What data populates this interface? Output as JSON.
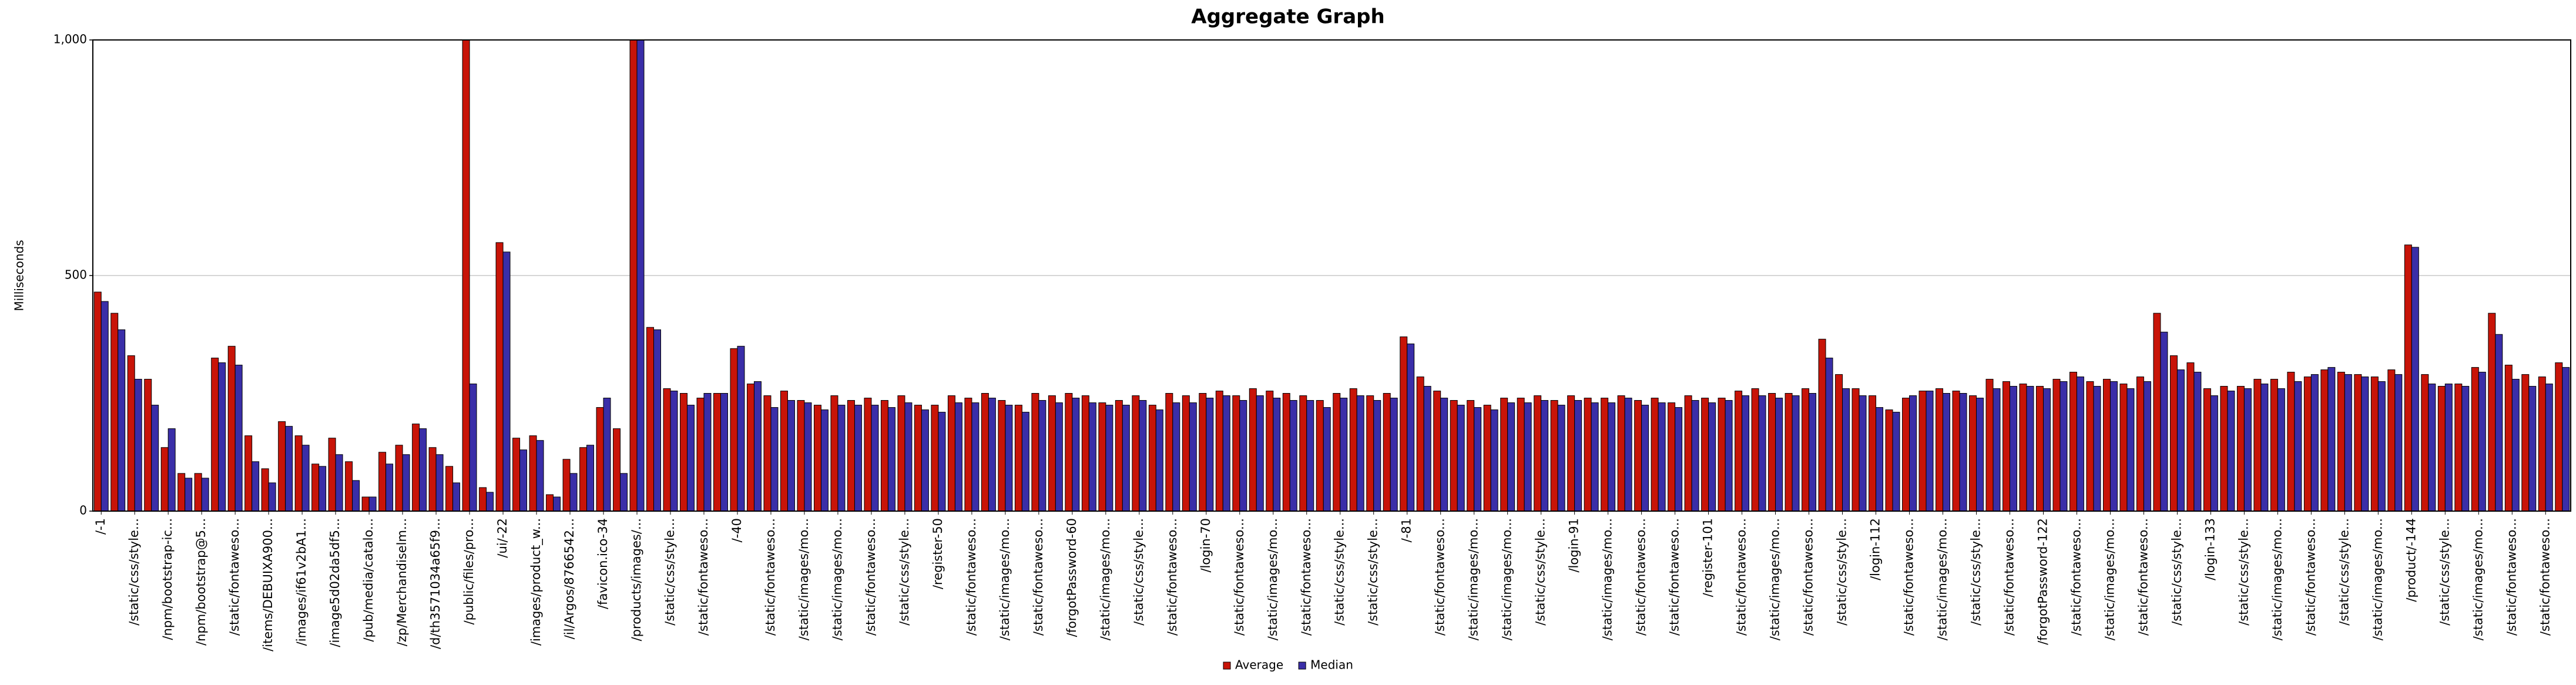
{
  "chart_data": {
    "type": "bar",
    "title": "Aggregate Graph",
    "y_label": "Milliseconds",
    "ylim": [
      0,
      1000
    ],
    "yticks": [
      0,
      500,
      {
        "value": 1000,
        "label": "1,000"
      }
    ],
    "grid": true,
    "legend": "bottom",
    "categories": [
      "/-1",
      null,
      "/static/css/style...",
      null,
      "/npm/bootstrap-ic...",
      null,
      "/npm/bootstrap@5...",
      null,
      "/static/fontaweso...",
      null,
      "/items/DEBUIXA900...",
      null,
      "/images/if61v2bA1...",
      null,
      "/image5d02da5df5...",
      null,
      "/pub/media/catalo...",
      null,
      "/zp/Merchandiselm...",
      null,
      "/d/th3571034a65f9...",
      null,
      "/public/files/pro...",
      null,
      "/ui/-22",
      null,
      "/images/product_w...",
      null,
      "/il/Argos/8766542...",
      null,
      "/favicon.ico-34",
      null,
      "/products/images/...",
      null,
      "/static/css/style...",
      null,
      "/static/fontaweso...",
      null,
      "/-40",
      null,
      "/static/fontaweso...",
      null,
      "/static/images/mo...",
      null,
      "/static/images/mo...",
      null,
      "/static/fontaweso...",
      null,
      "/static/css/style...",
      null,
      "/register-50",
      null,
      "/static/fontaweso...",
      null,
      "/static/images/mo...",
      null,
      "/static/fontaweso...",
      null,
      "/forgotPassword-60",
      null,
      "/static/images/mo...",
      null,
      "/static/css/style...",
      null,
      "/static/fontaweso...",
      null,
      "/login-70",
      null,
      "/static/fontaweso...",
      null,
      "/static/images/mo...",
      null,
      "/static/fontaweso...",
      null,
      "/static/css/style...",
      null,
      "/static/css/style...",
      null,
      "/-81",
      null,
      "/static/fontaweso...",
      null,
      "/static/images/mo...",
      null,
      "/static/images/mo...",
      null,
      "/static/css/style...",
      null,
      "/login-91",
      null,
      "/static/images/mo...",
      null,
      "/static/fontaweso...",
      null,
      "/static/fontaweso...",
      null,
      "/register-101",
      null,
      "/static/fontaweso...",
      null,
      "/static/images/mo...",
      null,
      "/static/fontaweso...",
      null,
      "/static/css/style...",
      null,
      "/login-112",
      null,
      "/static/fontaweso...",
      null,
      "/static/images/mo...",
      null,
      "/static/css/style...",
      null,
      "/static/fontaweso...",
      null,
      "/forgotPassword-122",
      null,
      "/static/fontaweso...",
      null,
      "/static/images/mo...",
      null,
      "/static/fontaweso...",
      null,
      "/static/css/style...",
      null,
      "/login-133",
      null,
      "/static/css/style...",
      null,
      "/static/images/mo...",
      null,
      "/static/fontaweso...",
      null,
      "/static/css/style...",
      null,
      "/static/images/mo...",
      null,
      "/product/-144",
      null,
      "/static/css/style...",
      null,
      "/static/images/mo...",
      null,
      "/static/fontaweso...",
      null,
      "/static/fontaweso...",
      null
    ],
    "series": [
      {
        "name": "Average",
        "color": "#c81408",
        "values": [
          465,
          420,
          330,
          280,
          135,
          80,
          80,
          325,
          350,
          160,
          90,
          190,
          160,
          100,
          155,
          105,
          30,
          125,
          140,
          185,
          135,
          95,
          1000,
          50,
          570,
          155,
          160,
          35,
          110,
          135,
          220,
          175,
          1000,
          390,
          260,
          250,
          240,
          250,
          345,
          270,
          245,
          255,
          235,
          225,
          245,
          235,
          240,
          235,
          245,
          225,
          225,
          245,
          240,
          250,
          235,
          225,
          250,
          245,
          250,
          245,
          230,
          235,
          245,
          225,
          250,
          245,
          250,
          255,
          245,
          260,
          255,
          250,
          245,
          235,
          250,
          260,
          245,
          250,
          370,
          285,
          255,
          235,
          235,
          225,
          240,
          240,
          245,
          235,
          245,
          240,
          240,
          245,
          235,
          240,
          230,
          245,
          240,
          240,
          255,
          260,
          250,
          250,
          260,
          365,
          290,
          260,
          245,
          215,
          240,
          255,
          260,
          255,
          245,
          280,
          275,
          270,
          265,
          280,
          295,
          275,
          280,
          270,
          285,
          420,
          330,
          315,
          260,
          265,
          265,
          280,
          280,
          295,
          285,
          300,
          295,
          290,
          285,
          300,
          565,
          290,
          265,
          270,
          305,
          420,
          310,
          290,
          285,
          315
        ]
      },
      {
        "name": "Median",
        "color": "#3a2ea8",
        "values": [
          445,
          385,
          280,
          225,
          175,
          70,
          70,
          315,
          310,
          105,
          60,
          180,
          140,
          95,
          120,
          65,
          30,
          100,
          120,
          175,
          120,
          60,
          270,
          40,
          550,
          130,
          150,
          30,
          80,
          140,
          240,
          80,
          1000,
          385,
          255,
          225,
          250,
          250,
          350,
          275,
          220,
          235,
          230,
          215,
          225,
          225,
          225,
          220,
          230,
          215,
          210,
          230,
          230,
          240,
          225,
          210,
          235,
          230,
          240,
          230,
          225,
          225,
          235,
          215,
          230,
          230,
          240,
          245,
          235,
          245,
          240,
          235,
          235,
          220,
          240,
          245,
          235,
          240,
          355,
          265,
          240,
          225,
          220,
          215,
          230,
          230,
          235,
          225,
          235,
          230,
          230,
          240,
          225,
          230,
          220,
          235,
          230,
          235,
          245,
          245,
          240,
          245,
          250,
          325,
          260,
          245,
          220,
          210,
          245,
          255,
          250,
          250,
          240,
          260,
          265,
          265,
          260,
          275,
          285,
          265,
          275,
          260,
          275,
          380,
          300,
          295,
          245,
          255,
          260,
          270,
          260,
          275,
          290,
          305,
          290,
          285,
          275,
          290,
          560,
          270,
          270,
          265,
          295,
          375,
          280,
          265,
          270,
          305
        ]
      }
    ]
  }
}
